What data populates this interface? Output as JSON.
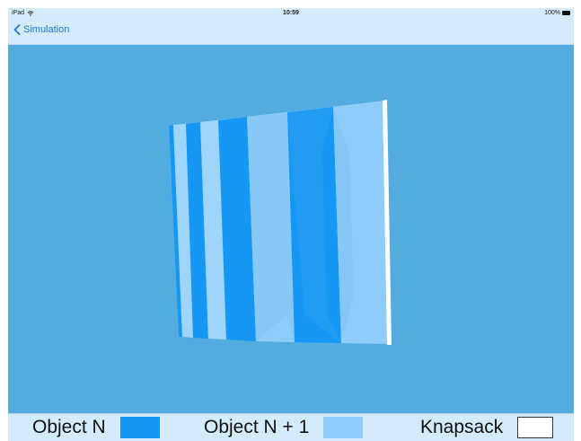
{
  "status_bar": {
    "device": "iPad",
    "time": "10:59",
    "battery": "100%"
  },
  "nav": {
    "back_label": "Simulation"
  },
  "legend": {
    "object_n": "Object N",
    "object_n1": "Object N + 1",
    "knapsack": "Knapsack"
  },
  "colors": {
    "object_n": "#1598f5",
    "object_n1": "#8ecdf9",
    "knapsack": "#ffffff",
    "scene_background": "#54abdf",
    "bar_background": "#d4ebfb"
  },
  "icons": {
    "back": "chevron-left-icon",
    "wifi": "wifi-icon",
    "battery": "battery-icon"
  }
}
